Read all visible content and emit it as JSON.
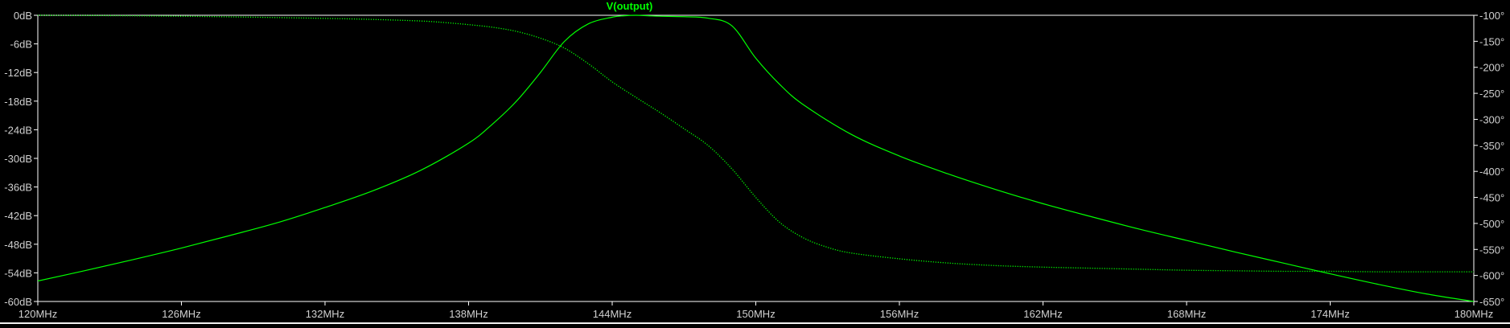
{
  "colors": {
    "background": "#000000",
    "plot_border": "#ffffff",
    "tick_label": "#d0d0d0",
    "trace": "#00ff00",
    "strip": "#f0f0f0"
  },
  "chart_data": {
    "type": "line",
    "title": "V(output)",
    "grid": false,
    "x_axis": {
      "label": "",
      "range": [
        120,
        180
      ],
      "ticks": [
        120,
        126,
        132,
        138,
        144,
        150,
        156,
        162,
        168,
        174,
        180
      ],
      "tick_labels": [
        "120MHz",
        "126MHz",
        "132MHz",
        "138MHz",
        "144MHz",
        "150MHz",
        "156MHz",
        "162MHz",
        "168MHz",
        "174MHz",
        "180MHz"
      ]
    },
    "y_left": {
      "label": "",
      "range": [
        -60,
        0
      ],
      "ticks": [
        0,
        -6,
        -12,
        -18,
        -24,
        -30,
        -36,
        -42,
        -48,
        -54,
        -60
      ],
      "tick_labels": [
        "0dB",
        "-6dB",
        "-12dB",
        "-18dB",
        "-24dB",
        "-30dB",
        "-36dB",
        "-42dB",
        "-48dB",
        "-54dB",
        "-60dB"
      ]
    },
    "y_right": {
      "label": "",
      "range": [
        -650,
        -100
      ],
      "ticks": [
        -100,
        -150,
        -200,
        -250,
        -300,
        -350,
        -400,
        -450,
        -500,
        -550,
        -600,
        -650
      ],
      "tick_labels": [
        "-100°",
        "-150°",
        "-200°",
        "-250°",
        "-300°",
        "-350°",
        "-400°",
        "-450°",
        "-500°",
        "-550°",
        "-600°",
        "-650°"
      ]
    },
    "series": [
      {
        "axis": "left",
        "style": "solid",
        "color": "#00ff00",
        "x": [
          120,
          122,
          124,
          126,
          128,
          130,
          132,
          134,
          136,
          138,
          139,
          140,
          141,
          142,
          143,
          144,
          144.5,
          145,
          145.5,
          146,
          147,
          148,
          149,
          150,
          151,
          152,
          154,
          156,
          158,
          160,
          162,
          164,
          166,
          168,
          170,
          172,
          174,
          176,
          178,
          180
        ],
        "y": [
          -55.7,
          -53.5,
          -51.2,
          -48.8,
          -46.2,
          -43.5,
          -40.3,
          -36.8,
          -32.5,
          -26.8,
          -22.8,
          -18.0,
          -12.0,
          -5.5,
          -1.8,
          -0.4,
          -0.1,
          0.0,
          -0.1,
          -0.2,
          -0.3,
          -0.6,
          -2.2,
          -9.0,
          -14.5,
          -18.8,
          -25.0,
          -29.5,
          -33.2,
          -36.5,
          -39.5,
          -42.2,
          -44.8,
          -47.2,
          -49.6,
          -51.9,
          -54.2,
          -56.4,
          -58.4,
          -60.0
        ]
      },
      {
        "axis": "right",
        "style": "dotted",
        "color": "#00ff00",
        "x": [
          120,
          124,
          128,
          132,
          134,
          136,
          137,
          138,
          139,
          140,
          141,
          142,
          143,
          144,
          145,
          146,
          147,
          148,
          149,
          150,
          151,
          152,
          153,
          154,
          156,
          158,
          160,
          162,
          164,
          166,
          168,
          170,
          172,
          174,
          176,
          178,
          180
        ],
        "y": [
          -100,
          -101,
          -103,
          -106,
          -108,
          -111,
          -114,
          -118,
          -123,
          -131,
          -144,
          -163,
          -193,
          -228,
          -258,
          -287,
          -318,
          -350,
          -395,
          -450,
          -498,
          -528,
          -546,
          -557,
          -568,
          -576,
          -581,
          -584,
          -586,
          -588,
          -590,
          -591,
          -592,
          -592,
          -593,
          -593,
          -593
        ]
      }
    ]
  }
}
